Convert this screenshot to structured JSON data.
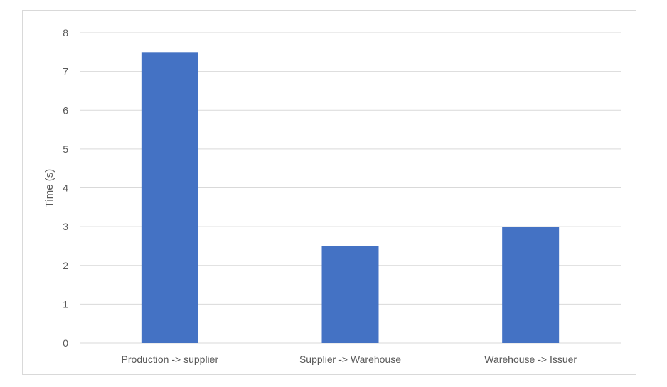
{
  "chart_data": {
    "type": "bar",
    "categories": [
      "Production -> supplier",
      "Supplier -> Warehouse",
      "Warehouse -> Issuer"
    ],
    "values": [
      7.5,
      2.5,
      3
    ],
    "title": "",
    "xlabel": "",
    "ylabel": "Time  (s)",
    "ylim": [
      0,
      8
    ],
    "yticks": [
      0,
      1,
      2,
      3,
      4,
      5,
      6,
      7,
      8
    ],
    "grid": true,
    "legend": "none",
    "bar_color": "#4472C4",
    "grid_color": "#D9D9D9",
    "text_color": "#595959"
  }
}
